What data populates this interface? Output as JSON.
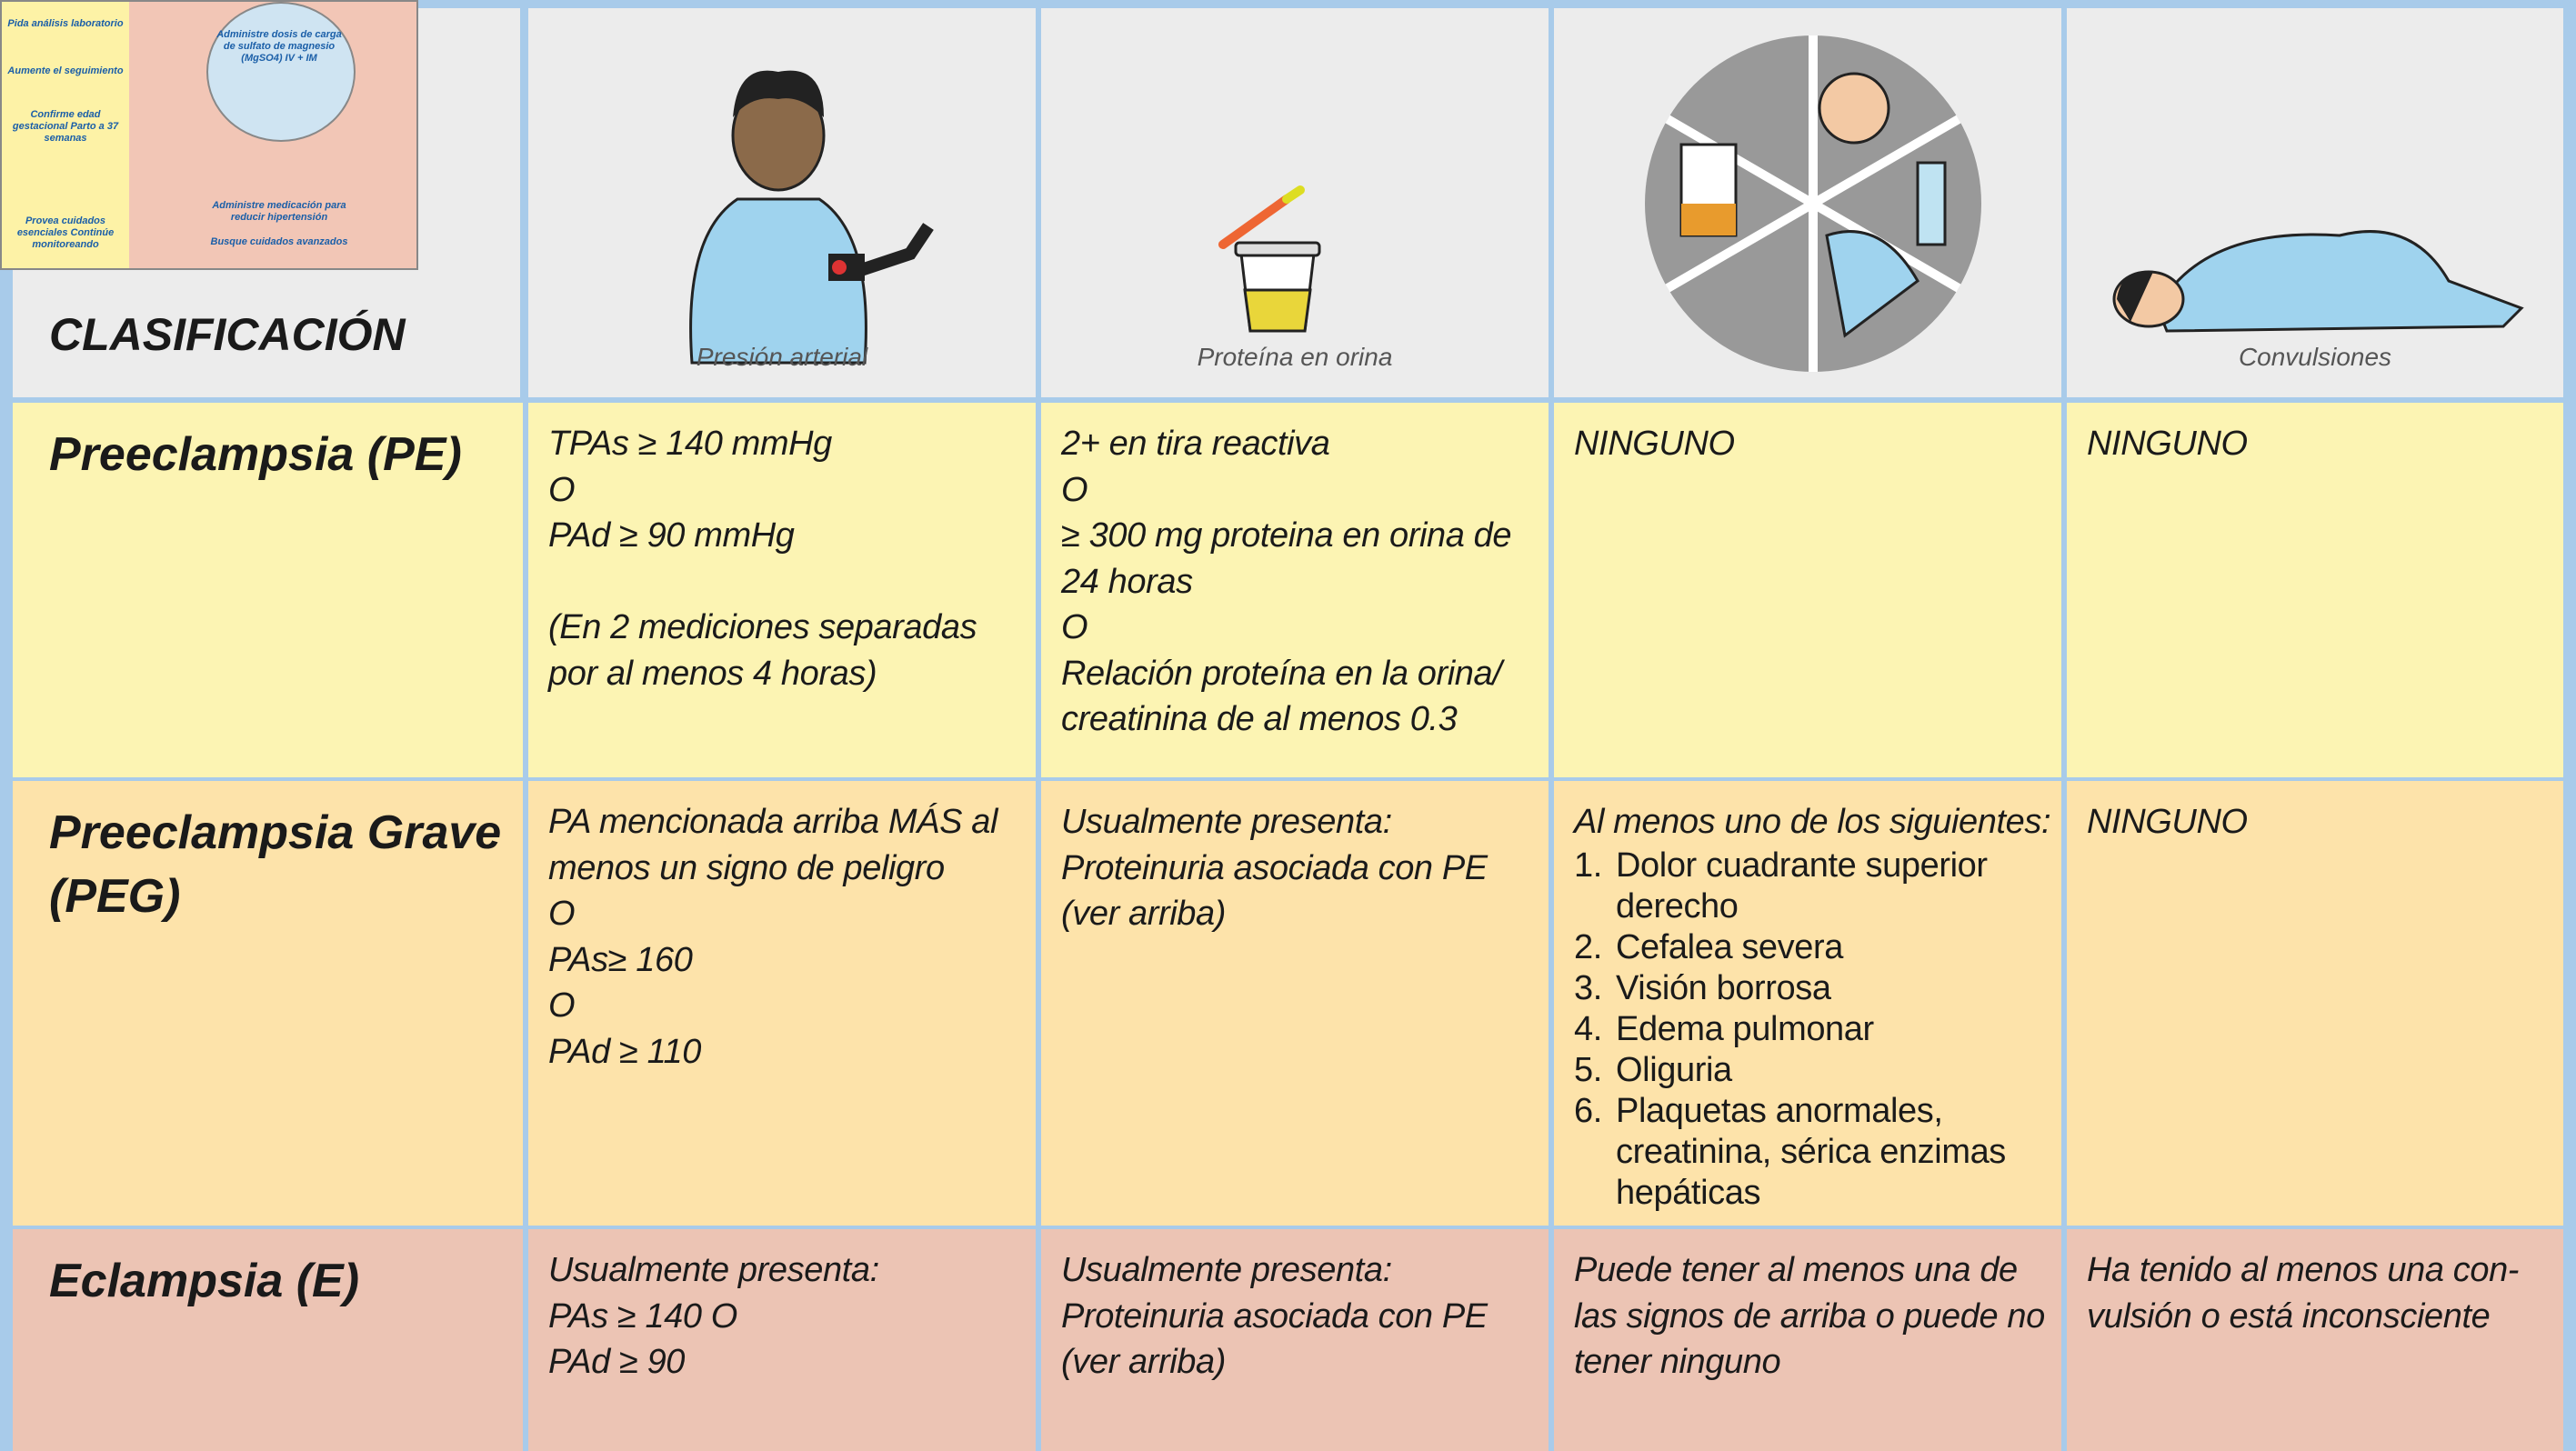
{
  "header": {
    "classification": "CLASIFICACIÓN",
    "captions": {
      "blood_pressure": "Presión arterial",
      "urine_protein": "Proteína en orina",
      "convulsions": "Convulsiones"
    }
  },
  "thumbnail": {
    "texts": [
      "Pida análisis laboratorio",
      "Aumente el seguimiento",
      "Confirme edad gestacional Parto a 37 semanas",
      "Provea cuidados esenciales Continúe monitoreando",
      "Administre dosis de carga de sulfato de magnesio (MgSO4) IV + IM",
      "Administre medicación para reducir hipertensión",
      "Busque cuidados avanzados"
    ]
  },
  "rows": [
    {
      "label": [
        "Preeclampsia (PE)"
      ],
      "cells": [
        {
          "paragraphs": [
            [
              "TPAs ≥ 140 mmHg",
              "O",
              "PAd ≥ 90 mmHg"
            ],
            [
              "(En 2 mediciones separadas",
              "por al menos 4 horas)"
            ]
          ]
        },
        {
          "paragraphs": [
            [
              "2+ en tira reactiva",
              "O",
              "≥ 300 mg proteina en orina de",
              "24 horas",
              "O",
              "Relación proteína en la orina/",
              "creatinina de al menos 0.3"
            ]
          ]
        },
        {
          "paragraphs": [
            [
              "NINGUNO"
            ]
          ]
        },
        {
          "paragraphs": [
            [
              "NINGUNO"
            ]
          ]
        }
      ]
    },
    {
      "label": [
        "Preeclampsia Grave",
        "(PEG)"
      ],
      "cells": [
        {
          "paragraphs": [
            [
              "PA mencionada arriba MÁS al",
              "menos un signo de peligro",
              "O",
              "PAs≥ 160",
              "O",
              "PAd ≥ 110"
            ]
          ]
        },
        {
          "paragraphs": [
            [
              "Usualmente presenta:",
              "Proteinuria asociada con PE",
              "(ver arriba)"
            ]
          ]
        },
        {
          "paragraphs": [
            [
              "Al menos uno de los siguientes:"
            ]
          ],
          "items": [
            {
              "n": "1.",
              "lines": [
                "Dolor cuadrante superior",
                "derecho"
              ]
            },
            {
              "n": "2.",
              "lines": [
                "Cefalea severa"
              ]
            },
            {
              "n": "3.",
              "lines": [
                "Visión borrosa"
              ]
            },
            {
              "n": "4.",
              "lines": [
                "Edema pulmonar"
              ]
            },
            {
              "n": "5.",
              "lines": [
                "Oliguria"
              ]
            },
            {
              "n": "6.",
              "lines": [
                "Plaquetas anormales,",
                "creatinina, sérica enzimas",
                "hepáticas"
              ]
            }
          ]
        },
        {
          "paragraphs": [
            [
              "NINGUNO"
            ]
          ]
        }
      ]
    },
    {
      "label": [
        "Eclampsia (E)"
      ],
      "cells": [
        {
          "paragraphs": [
            [
              "Usualmente presenta:",
              "PAs ≥ 140 O",
              "PAd ≥ 90"
            ]
          ]
        },
        {
          "paragraphs": [
            [
              "Usualmente presenta:",
              "Proteinuria asociada con PE",
              "(ver arriba)"
            ]
          ]
        },
        {
          "paragraphs": [
            [
              "Puede tener al menos una de",
              "las signos de arriba o puede no",
              "tener ninguno"
            ]
          ]
        },
        {
          "paragraphs": [
            [
              "Ha tenido al menos una con-",
              "vulsión o está inconsciente"
            ]
          ]
        }
      ]
    }
  ]
}
